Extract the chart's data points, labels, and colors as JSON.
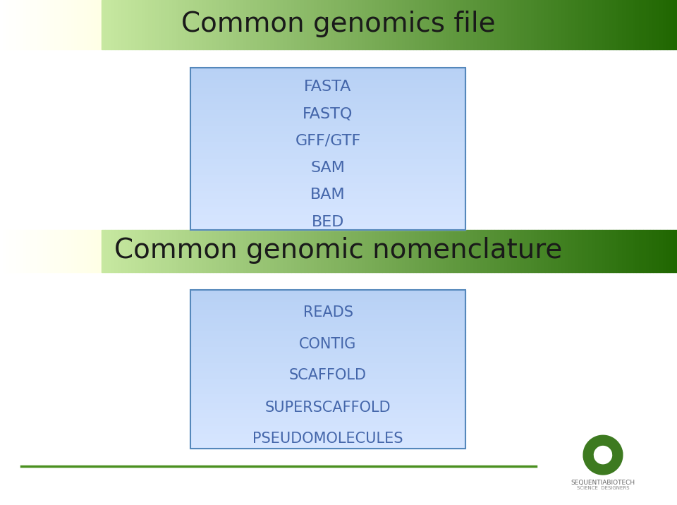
{
  "title1": "Common genomics file",
  "title2": "Common genomic nomenclature",
  "box1_items": [
    "FASTA",
    "FASTQ",
    "GFF/GTF",
    "SAM",
    "BAM",
    "BED"
  ],
  "box2_items": [
    "READS",
    "CONTIG",
    "SCAFFOLD",
    "SUPERSCAFFOLD",
    "PSEUDOMOLECULES"
  ],
  "bg_color": "#ffffff",
  "logo_green": "#3d7a20",
  "footer_line_color": "#4a9020",
  "box_text_color": "#4466aa",
  "sequentiabiotech_text": "SEQUENTIABIOTECH",
  "science_designers_text": "SCIENCE  DESIGNERS"
}
